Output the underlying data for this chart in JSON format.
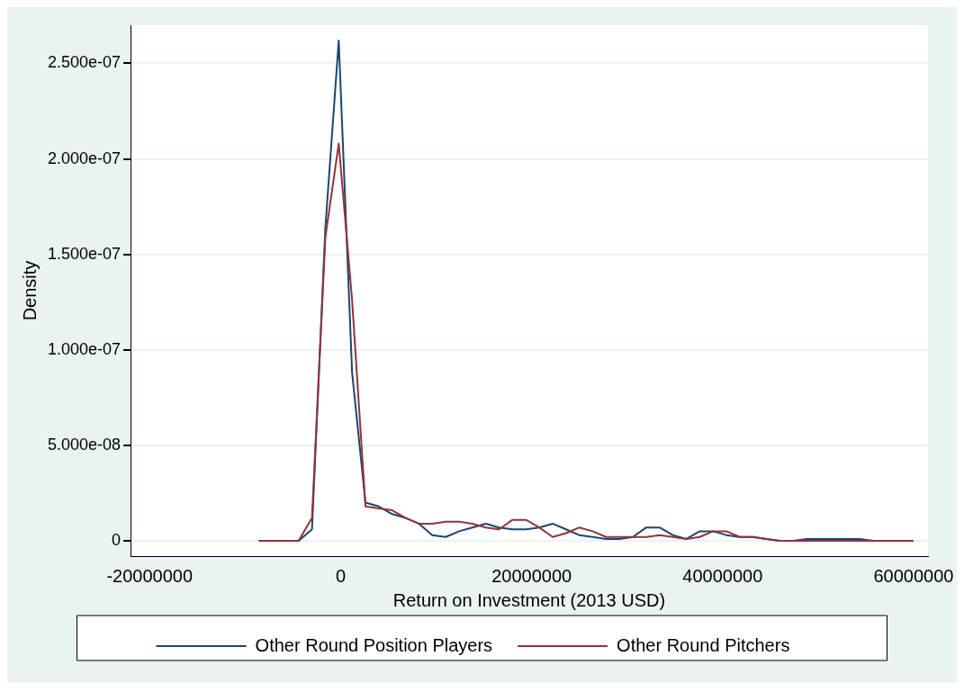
{
  "chart_data": {
    "type": "line",
    "xlabel": "Return on Investment (2013 USD)",
    "ylabel": "Density",
    "x": [
      -8600000,
      -7200000,
      -5800000,
      -4400000,
      -3000000,
      -1600000,
      -200000,
      1200000,
      2600000,
      4000000,
      5400000,
      6800000,
      8200000,
      9600000,
      11000000,
      12400000,
      13800000,
      15200000,
      16600000,
      18000000,
      19400000,
      20800000,
      22200000,
      23600000,
      25000000,
      26400000,
      27800000,
      29200000,
      30600000,
      32000000,
      33400000,
      34800000,
      36200000,
      37600000,
      39000000,
      40400000,
      41800000,
      43200000,
      44600000,
      46000000,
      47400000,
      48800000,
      50200000,
      51600000,
      53000000,
      54400000,
      55800000,
      57200000,
      58600000,
      60000000
    ],
    "series": [
      {
        "name": "Other Round Position Players",
        "color": "#1a476f",
        "values": [
          null,
          null,
          0,
          0,
          6e-09,
          1.64e-07,
          2.62e-07,
          8.8e-08,
          2e-08,
          1.8e-08,
          1.4e-08,
          1.2e-08,
          9e-09,
          3e-09,
          2e-09,
          5e-09,
          7e-09,
          9e-09,
          7e-09,
          6e-09,
          6e-09,
          7e-09,
          9e-09,
          6e-09,
          3e-09,
          2e-09,
          1e-09,
          1e-09,
          2e-09,
          7e-09,
          7e-09,
          3e-09,
          1e-09,
          5e-09,
          5e-09,
          3e-09,
          2e-09,
          2e-09,
          1e-09,
          0,
          0,
          1e-09,
          1e-09,
          1e-09,
          1e-09,
          1e-09,
          0,
          0,
          null,
          null
        ]
      },
      {
        "name": "Other Round Pitchers",
        "color": "#90353b",
        "values": [
          0,
          0,
          0,
          0,
          1.2e-08,
          1.59e-07,
          2.08e-07,
          1.26e-07,
          1.8e-08,
          1.7e-08,
          1.6e-08,
          1.2e-08,
          9e-09,
          9e-09,
          1e-08,
          1e-08,
          9e-09,
          7e-09,
          6e-09,
          1.1e-08,
          1.1e-08,
          7e-09,
          2e-09,
          4e-09,
          7e-09,
          5e-09,
          2e-09,
          2e-09,
          2e-09,
          2e-09,
          3e-09,
          2e-09,
          1e-09,
          2e-09,
          5e-09,
          5e-09,
          2e-09,
          2e-09,
          1e-09,
          0,
          0,
          0,
          0,
          0,
          0,
          0,
          0,
          0,
          0,
          0
        ]
      }
    ],
    "xlim": [
      -22000000,
      61500000
    ],
    "xticks": [
      -20000000,
      0,
      20000000,
      40000000,
      60000000
    ],
    "ylim": [
      -8e-09,
      2.7e-07
    ],
    "yticks": [
      0,
      {
        "value": 5e-08,
        "label": "5.000e-08"
      },
      {
        "value": 1e-07,
        "label": "1.000e-07"
      },
      {
        "value": 1.5e-07,
        "label": "1.500e-07"
      },
      {
        "value": 2e-07,
        "label": "2.000e-07"
      },
      {
        "value": 2.5e-07,
        "label": "2.500e-07"
      }
    ],
    "grid": "y",
    "legend": "bottom",
    "marker": "none",
    "line_style": "solid"
  }
}
